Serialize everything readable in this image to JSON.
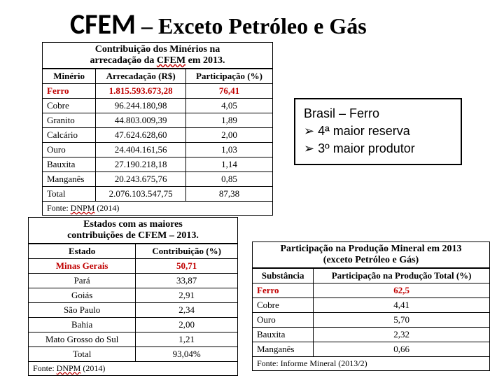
{
  "title": {
    "big": "CFEM",
    "rest": " – Exceto Petróleo e Gás"
  },
  "table1": {
    "caption_l1": "Contribuição dos Minérios na",
    "caption_l2_a": "arrecadação da ",
    "caption_l2_b": "CFEM",
    "caption_l2_c": " em 2013.",
    "cols": [
      "Minério",
      "Arrecadação (R$)",
      "Participação (%)"
    ],
    "rows": [
      {
        "m": "Ferro",
        "a": "1.815.593.673,28",
        "p": "76,41",
        "red": true
      },
      {
        "m": "Cobre",
        "a": "96.244.180,98",
        "p": "4,05",
        "red": false
      },
      {
        "m": "Granito",
        "a": "44.803.009,39",
        "p": "1,89",
        "red": false
      },
      {
        "m": "Calcário",
        "a": "47.624.628,60",
        "p": "2,00",
        "red": false
      },
      {
        "m": "Ouro",
        "a": "24.404.161,56",
        "p": "1,03",
        "red": false
      },
      {
        "m": "Bauxita",
        "a": "27.190.218,18",
        "p": "1,14",
        "red": false
      },
      {
        "m": "Manganês",
        "a": "20.243.675,76",
        "p": "0,85",
        "red": false
      },
      {
        "m": "Total",
        "a": "2.076.103.547,75",
        "p": "87,38",
        "red": false
      }
    ],
    "source_a": "Fonte: ",
    "source_b": "DNPM",
    "source_c": " (2014)"
  },
  "callout": {
    "line1": "Brasil – Ferro",
    "line2": "4ª maior reserva",
    "line3": "3º maior produtor",
    "bullet": "➢"
  },
  "table2": {
    "caption_l1": "Estados com as maiores",
    "caption_l2": "contribuições de CFEM – 2013.",
    "cols": [
      "Estado",
      "Contribuição (%)"
    ],
    "rows": [
      {
        "e": "Minas Gerais",
        "c": "50,71",
        "red": true
      },
      {
        "e": "Pará",
        "c": "33,87",
        "red": false
      },
      {
        "e": "Goiás",
        "c": "2,91",
        "red": false
      },
      {
        "e": "São Paulo",
        "c": "2,34",
        "red": false
      },
      {
        "e": "Bahia",
        "c": "2,00",
        "red": false
      },
      {
        "e": "Mato Grosso do Sul",
        "c": "1,21",
        "red": false
      },
      {
        "e": "Total",
        "c": "93,04%",
        "red": false
      }
    ],
    "source_a": "Fonte: ",
    "source_b": "DNPM",
    "source_c": " (2014)"
  },
  "table3": {
    "caption_l1": "Participação na Produção Mineral em 2013",
    "caption_l2": "(exceto Petróleo e Gás)",
    "cols": [
      "Substância",
      "Participação na Produção Total (%)"
    ],
    "rows": [
      {
        "s": "Ferro",
        "p": "62,5",
        "red": true
      },
      {
        "s": "Cobre",
        "p": "4,41",
        "red": false
      },
      {
        "s": "Ouro",
        "p": "5,70",
        "red": false
      },
      {
        "s": "Bauxita",
        "p": "2,32",
        "red": false
      },
      {
        "s": "Manganês",
        "p": "0,66",
        "red": false
      }
    ],
    "source": "Fonte: Informe Mineral (2013/2)"
  }
}
